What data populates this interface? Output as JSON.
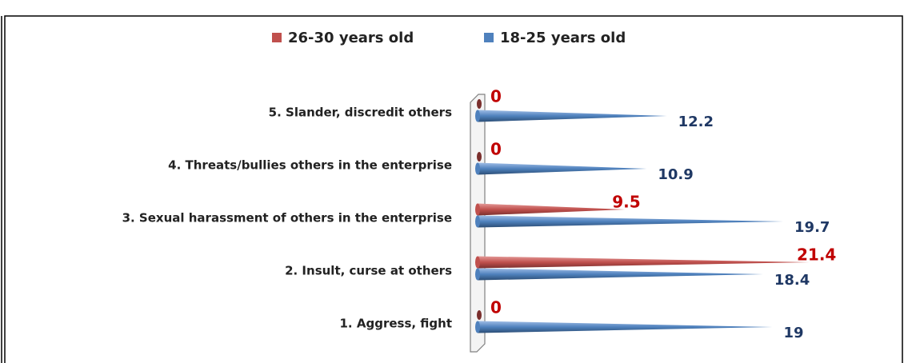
{
  "chart_data": {
    "type": "bar",
    "orientation": "horizontal",
    "categories": [
      "1. Aggress, fight",
      "2. Insult, curse at others",
      "3. Sexual harassment of others in the enterprise",
      "4. Threats/bullies others in the enterprise",
      "5. Slander, discredit others"
    ],
    "series": [
      {
        "name": "26-30 years old",
        "color": "#c0504d",
        "label_color": "#c00000",
        "values": [
          0,
          21.4,
          9.5,
          0,
          0
        ]
      },
      {
        "name": "18-25 years old",
        "color": "#4f81bd",
        "label_color": "#1f3864",
        "values": [
          19,
          18.4,
          19.7,
          10.9,
          12.2
        ]
      }
    ],
    "legend": "top"
  }
}
